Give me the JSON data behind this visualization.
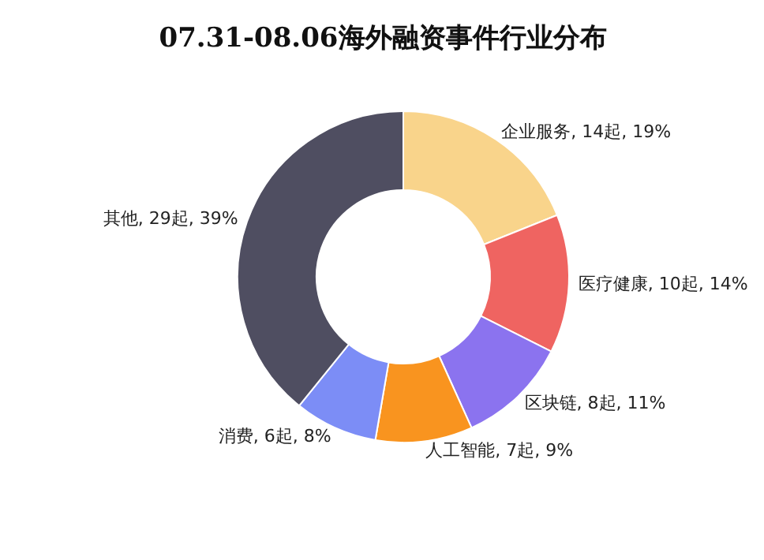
{
  "chart_data": {
    "type": "donut",
    "title": "07.31-08.06海外融资事件行业分布",
    "categories": [
      "企业服务",
      "医疗健康",
      "区块链",
      "人工智能",
      "消费",
      "其他"
    ],
    "values": [
      14,
      10,
      8,
      7,
      6,
      29
    ],
    "value_labels": [
      "14起, 19%",
      "10起, 14%",
      "8起, 11%",
      "7起, 9%",
      "6起, 8%",
      "29起, 39%"
    ],
    "colors": [
      "#f9d48b",
      "#ef6461",
      "#8b73ef",
      "#f9941f",
      "#7c8df6",
      "#4f4e61"
    ]
  }
}
